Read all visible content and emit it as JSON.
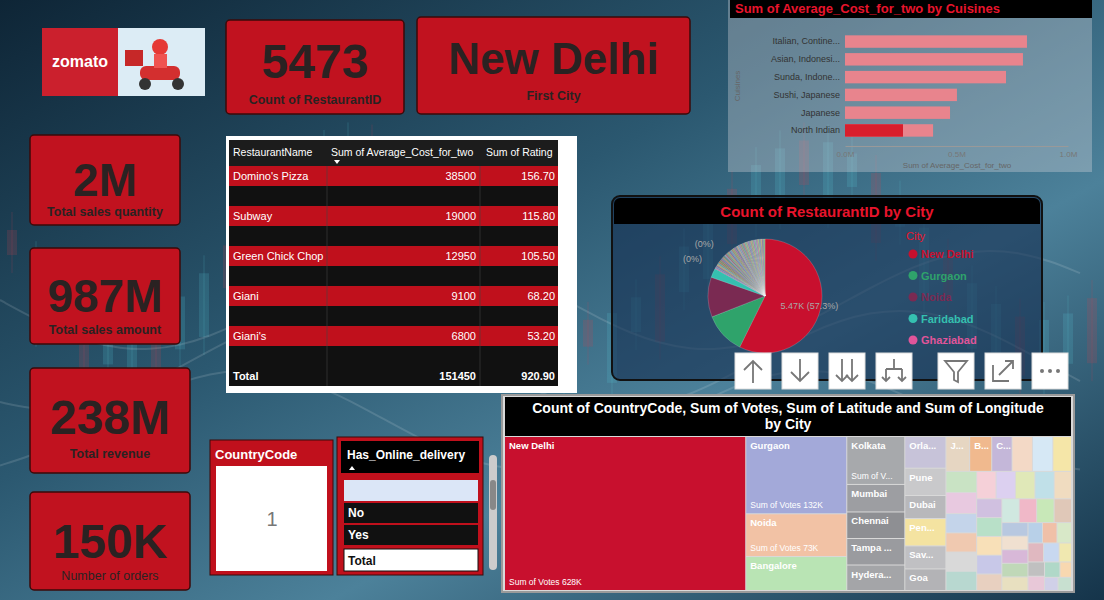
{
  "logo": "zomato",
  "cards": [
    {
      "value": 5473,
      "label": "Count of RestaurantID"
    },
    {
      "value": "New Delhi",
      "label": "First City"
    },
    {
      "value": "2M",
      "label": "Total sales quantity"
    },
    {
      "value": "987M",
      "label": "Total sales amount"
    },
    {
      "value": "238M",
      "label": "Total revenue"
    },
    {
      "value": "150K",
      "label": "Number of orders"
    }
  ],
  "table": {
    "columns": [
      "RestaurantName",
      "Sum of Average_Cost_for_two",
      "Sum of Rating"
    ],
    "rows": [
      [
        "Domino's Pizza",
        38500,
        "156.70"
      ],
      [
        "Subway",
        19000,
        "115.80"
      ],
      [
        "Green Chick Chop",
        12950,
        "105.50"
      ],
      [
        "Giani",
        9100,
        "68.20"
      ],
      [
        "Giani's",
        6800,
        "53.20"
      ]
    ],
    "total": [
      "Total",
      151450,
      "920.90"
    ]
  },
  "slicers": [
    {
      "title": "CountryCode",
      "value": 1
    },
    {
      "title": "Has_Online_delivery",
      "items": [
        "No",
        "Yes"
      ],
      "total": "Total"
    }
  ],
  "chart_data": [
    {
      "type": "bar",
      "orientation": "horizontal",
      "title": "Sum of Average_Cost_for_two by Cuisines",
      "x_label": "Sum of Average_Cost_for_two",
      "y_label": "Cuisines",
      "categories": [
        "Italian, Contine...",
        "Asian, Indonesi...",
        "Sunda, Indone...",
        "Sushi, Japanese",
        "Japanese",
        "North Indian"
      ],
      "values": [
        816000,
        798000,
        722000,
        502000,
        471000,
        395000
      ],
      "highlight_values": [
        null,
        null,
        null,
        null,
        null,
        260000
      ],
      "color": "#e8848d",
      "xlim": [
        0,
        1000000
      ],
      "xticks": [
        {
          "value": 0,
          "label": "0.0M"
        },
        {
          "value": 500000,
          "label": "0.5M"
        },
        {
          "value": 1000000,
          "label": "1.0M"
        }
      ]
    },
    {
      "type": "pie",
      "title": "Count of RestaurantID by City",
      "legend_title": "City",
      "legend": "right",
      "data_labels": true,
      "categories": [
        "New Delhi",
        "Gurgaon",
        "Noida",
        "Faridabad",
        "Ghaziabad",
        null,
        null,
        null,
        null,
        null,
        null,
        null,
        null,
        null,
        null,
        null,
        null,
        null,
        null,
        null,
        null,
        null,
        null,
        null,
        null,
        null,
        null,
        null,
        null,
        null,
        null,
        null,
        null,
        null,
        null,
        null,
        null,
        null,
        null,
        null,
        null,
        null,
        null,
        null,
        null
      ],
      "values": [
        5473,
        1118,
        1080,
        251,
        25,
        40,
        40,
        40,
        40,
        40,
        40,
        40,
        40,
        40,
        40,
        40,
        40,
        40,
        40,
        40,
        40,
        40,
        40,
        40,
        40,
        40,
        40,
        40,
        40,
        40,
        40,
        40,
        40,
        40,
        40,
        40,
        40,
        40,
        40,
        40,
        40,
        40,
        40,
        40,
        40
      ],
      "value_labels": [
        "5.47K (57.3%)",
        null,
        null,
        null,
        null,
        "(0%)",
        null,
        null,
        null,
        null,
        null,
        null,
        null,
        null,
        null,
        "(0%)",
        null,
        null,
        null,
        null,
        null,
        null,
        null,
        null,
        null,
        null,
        null,
        null,
        null,
        null,
        null,
        null,
        null,
        null,
        null,
        null,
        null,
        null,
        null,
        null,
        null,
        null,
        null,
        null,
        null
      ],
      "colors": [
        "#c8102e",
        "#2fa36b",
        "#7a2a52",
        "#35c0b0",
        "#e0559a",
        "#6b8fb3",
        "#8c6d8f",
        "#b0a36e",
        "#5f9ea0",
        "#a0785a",
        "#7a8b5c",
        "#9c6b7d",
        "#6d7fa3",
        "#b38b6d",
        "#5c8a7a",
        "#8f8fb0",
        "#a36d6d",
        "#6ea38f",
        "#b0956b",
        "#7d6da3",
        "#6b9cb3",
        "#a3866d",
        "#8aa36b",
        "#9e6b9e",
        "#6b7d8f",
        "#b39b8a",
        "#7aa0b0",
        "#a07a9c",
        "#8f9c6b",
        "#6d8fa0",
        "#b07a7a",
        "#7ab08f",
        "#a0a07a",
        "#8a7ab0",
        "#7a9ca0",
        "#b08f7a",
        "#8fb07a",
        "#a07ab0",
        "#7ab0a0",
        "#b07aa0",
        "#9cb07a",
        "#7a8fb0",
        "#b0a07a",
        "#8f7a9c",
        "#7ab07a"
      ]
    },
    {
      "type": "treemap",
      "title": "Count of CountryCode, Sum of Votes, Sum of Latitude and Sum of Longitude by City",
      "categories": [
        "New Delhi",
        "Gurgaon",
        "Noida",
        "Bangalore",
        "Kolkata",
        "Mumbai",
        "Chennai",
        "Tampa ...",
        "Hydera...",
        "Orla...",
        "Pune",
        "Dubai",
        "Pen...",
        "Sav...",
        "Goa",
        "J...",
        "B...",
        "C...",
        null,
        null,
        null,
        null,
        null,
        null,
        null,
        null,
        null,
        null,
        null,
        null,
        null,
        null,
        null,
        null,
        null,
        null,
        null,
        null,
        null,
        null,
        null,
        null,
        null,
        null,
        null,
        null,
        null,
        null,
        null,
        null,
        null,
        null,
        null,
        null,
        null,
        null,
        null,
        null
      ],
      "values": [
        628000,
        132000,
        73000,
        58000,
        47000,
        27000,
        26000,
        26000,
        25000,
        22000,
        19000,
        16000,
        19000,
        16000,
        15000,
        14000,
        13000,
        12000,
        12000,
        12000,
        11000,
        11000,
        11000,
        10000,
        10000,
        10000,
        10000,
        9000,
        9000,
        9000,
        9000,
        8000,
        8000,
        8000,
        8000,
        8000,
        7000,
        7000,
        7000,
        7000,
        7000,
        6000,
        6000,
        6000,
        6000,
        6000,
        5000,
        5000,
        5000,
        5000,
        5000,
        4000,
        4000,
        4000,
        4000,
        3000,
        3000,
        3000
      ],
      "value_labels": [
        "Sum of Votes 628K",
        "Sum of Votes 132K",
        "Sum of Votes 73K",
        null,
        "Sum of V...",
        null,
        null,
        null,
        null,
        null,
        null,
        null,
        null,
        null,
        null,
        null,
        null,
        null,
        null,
        null,
        null,
        null,
        null,
        null,
        null,
        null,
        null,
        null,
        null,
        null,
        null,
        null,
        null,
        null,
        null,
        null,
        null,
        null,
        null,
        null,
        null,
        null,
        null,
        null,
        null,
        null,
        null,
        null,
        null,
        null,
        null,
        null,
        null,
        null,
        null,
        null,
        null,
        null
      ],
      "colors": [
        "#c8102e",
        "#a3a9d9",
        "#f2c2a5",
        "#b9e4b4",
        "#a7a9ac",
        "#9d9ea2",
        "#8e8f93",
        "#9a9b9f",
        "#a4a5a8",
        "#c7c3d9",
        "#c9c9cb",
        "#b8b8bb",
        "#f4e3a1",
        "#c0c0c3",
        "#b3b3b6",
        "#e6d6c2",
        "#f0b98e",
        "#c4b7d9",
        "#f3d9c6",
        "#d6e8f5",
        "#f5e6a8",
        "#c9e3c4",
        "#e8c9e0",
        "#c4d4ea",
        "#f0c9b0",
        "#d9d9d9",
        "#b8d8d0",
        "#f5d0d8",
        "#dcd0f0",
        "#e0e8b8",
        "#c0e0e8",
        "#f0dcc0",
        "#d0c0e0",
        "#b8e0c8",
        "#f8e0b8",
        "#c8c8e8",
        "#e8d0c0",
        "#d0e8e0",
        "#f0b8c8",
        "#c8e8b8",
        "#e0c8b8",
        "#b8c8e0",
        "#f0e0d0",
        "#d8b8d8",
        "#c0d8b8",
        "#e8e0c0",
        "#b8d0e8",
        "#f0c0a8",
        "#d8e8c8",
        "#e0b8c0",
        "#c8d8f0",
        "#f0e8b0",
        "#c0c0c0",
        "#e8c8d8",
        "#b0d8c8",
        "#f8d8b0",
        "#d0d0e8",
        "#c8e0d0"
      ]
    }
  ]
}
